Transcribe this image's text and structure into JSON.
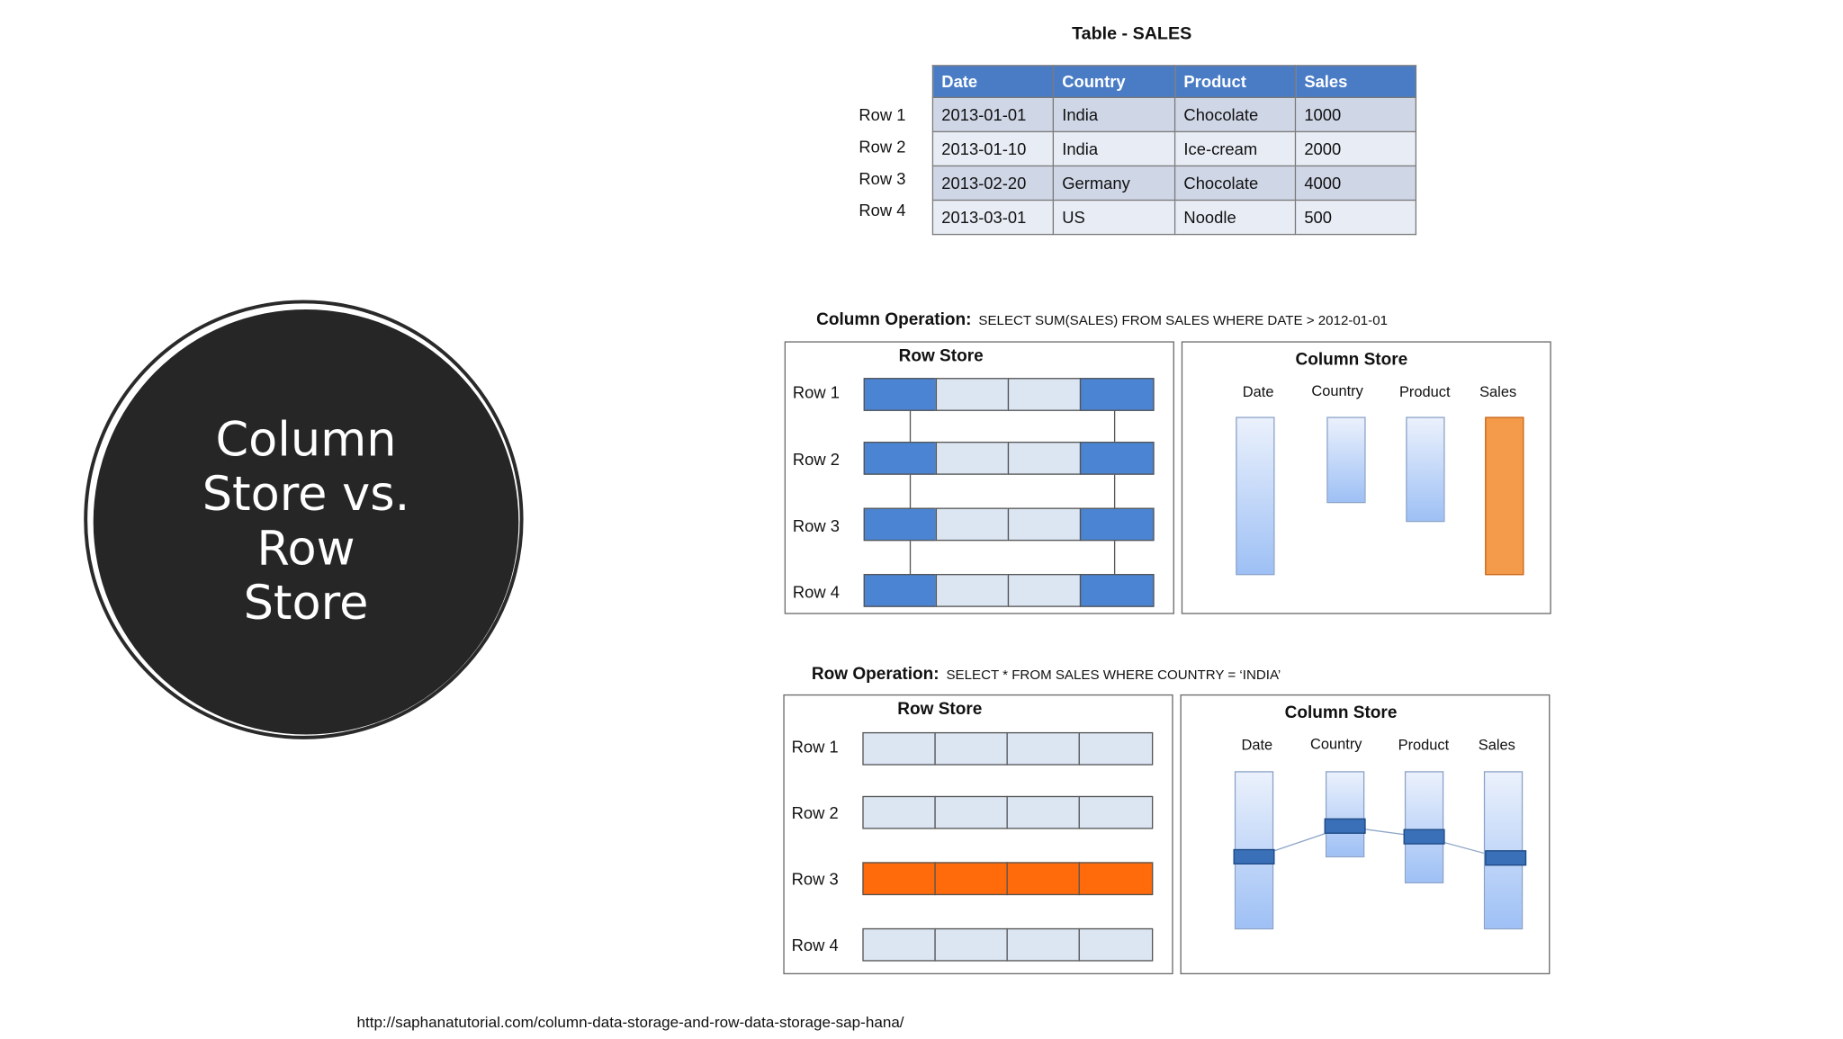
{
  "title": "Column Store vs. Row Store",
  "table": {
    "title": "Table - SALES",
    "headers": [
      "Date",
      "Country",
      "Product",
      "Sales"
    ],
    "row_labels": [
      "Row 1",
      "Row 2",
      "Row 3",
      "Row 4"
    ],
    "rows": [
      [
        "2013-01-01",
        "India",
        "Chocolate",
        "1000"
      ],
      [
        "2013-01-10",
        "India",
        "Ice-cream",
        "2000"
      ],
      [
        "2013-02-20",
        "Germany",
        "Chocolate",
        "4000"
      ],
      [
        "2013-03-01",
        "US",
        "Noodle",
        "500"
      ]
    ]
  },
  "column_operation": {
    "label": "Column Operation:",
    "sql": "SELECT SUM(SALES) FROM SALES WHERE DATE > 2012-01-01",
    "row_store_title": "Row Store",
    "column_store_title": "Column Store"
  },
  "row_operation": {
    "label": "Row Operation:",
    "sql": "SELECT * FROM SALES WHERE COUNTRY = ‘INDIA’",
    "row_store_title": "Row Store",
    "column_store_title": "Column Store"
  },
  "column_headers": [
    "Date",
    "Country",
    "Product",
    "Sales"
  ],
  "row_labels": [
    "Row 1",
    "Row 2",
    "Row 3",
    "Row 4"
  ],
  "colors": {
    "circle": "#262626",
    "table_header": "#4a7cc6",
    "selected_dark": "#4a84d3",
    "unselected": "#dce5f2",
    "row_highlight": "#ff6a0a",
    "column_highlight": "#f39a4b"
  },
  "source_url": "http://saphanatutorial.com/column-data-storage-and-row-data-storage-sap-hana/"
}
